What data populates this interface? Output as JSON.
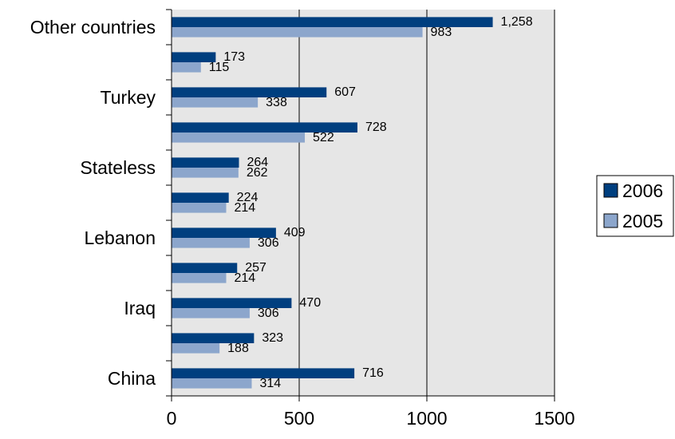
{
  "chart_data": {
    "type": "bar",
    "orientation": "horizontal",
    "categories": [
      "Other countries",
      "",
      "Turkey",
      "",
      "Stateless",
      "",
      "Lebanon",
      "",
      "Iraq",
      "",
      "China"
    ],
    "series": [
      {
        "name": "2006",
        "color": "#003f7f",
        "values": [
          1258,
          173,
          607,
          728,
          264,
          224,
          409,
          257,
          470,
          323,
          716
        ],
        "labels": [
          "1,258",
          "173",
          "607",
          "728",
          "264",
          "224",
          "409",
          "257",
          "470",
          "323",
          "716"
        ]
      },
      {
        "name": "2005",
        "color": "#8ca6cc",
        "values": [
          983,
          115,
          338,
          522,
          262,
          214,
          306,
          214,
          306,
          188,
          314
        ],
        "labels": [
          "983",
          "115",
          "338",
          "522",
          "262",
          "214",
          "306",
          "214",
          "306",
          "188",
          "314"
        ]
      }
    ],
    "xlim": [
      0,
      1500
    ],
    "xticks": [
      0,
      500,
      1000,
      1500
    ],
    "title": "",
    "xlabel": "",
    "ylabel": "",
    "plot_background": "#e6e6e6",
    "gridlines": "vertical",
    "legend_position": "right"
  }
}
